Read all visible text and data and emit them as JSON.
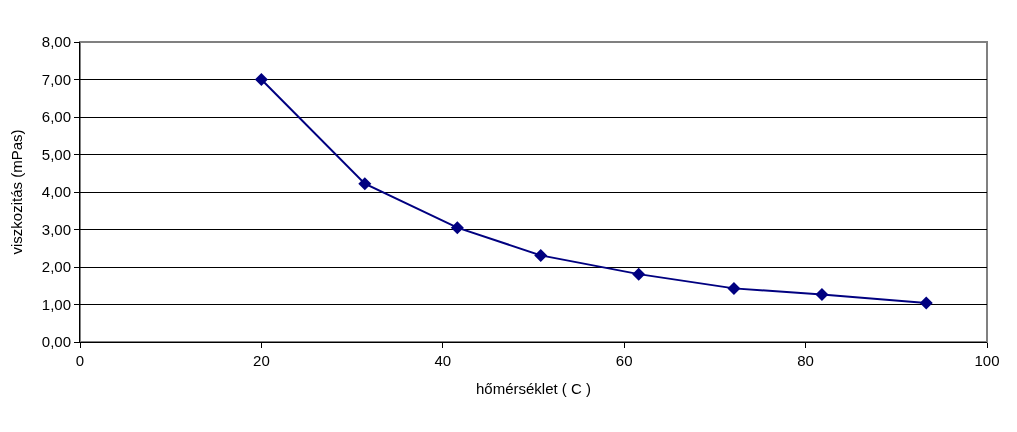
{
  "chart_data": {
    "type": "line",
    "xlabel": "hőmérséklet ( C )",
    "ylabel": "viszkozitás (mPas)",
    "x": [
      20,
      31.4,
      41.6,
      50.8,
      61.6,
      72.1,
      81.8,
      93.3
    ],
    "series": [
      {
        "color": "#000080",
        "values": [
          7.0,
          4.22,
          3.05,
          2.31,
          1.81,
          1.43,
          1.27,
          1.04
        ]
      }
    ],
    "xlim": [
      0,
      100
    ],
    "xticks": [
      0,
      20,
      40,
      60,
      80,
      100
    ],
    "ylim": [
      0,
      8
    ],
    "yticks": [
      {
        "value": 0,
        "label": "0,00"
      },
      {
        "value": 1,
        "label": "1,00"
      },
      {
        "value": 2,
        "label": "2,00"
      },
      {
        "value": 3,
        "label": "3,00"
      },
      {
        "value": 4,
        "label": "4,00"
      },
      {
        "value": 5,
        "label": "5,00"
      },
      {
        "value": 6,
        "label": "6,00"
      },
      {
        "value": 7,
        "label": "7,00"
      },
      {
        "value": 8,
        "label": "8,00"
      }
    ],
    "grid": "y",
    "marker": "diamond",
    "line_style": "solid"
  }
}
